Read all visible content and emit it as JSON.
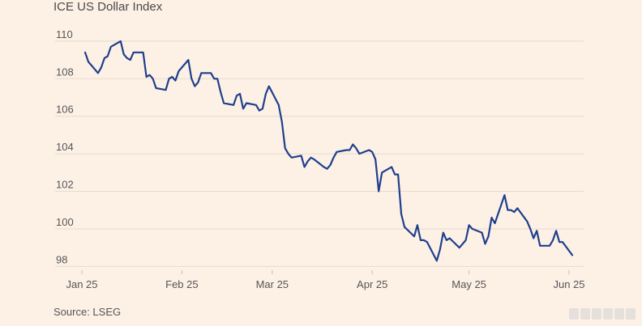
{
  "chart_data": {
    "type": "line",
    "title": "ICE US Dollar Index",
    "source": "Source: LSEG",
    "xlabel": "",
    "ylabel": "",
    "ylim": [
      97.8,
      110.9
    ],
    "y_ticks": [
      98,
      100,
      102,
      104,
      106,
      108,
      110
    ],
    "x_ticks": [
      {
        "label": "Jan 25",
        "date": "2025-01-01"
      },
      {
        "label": "Feb 25",
        "date": "2025-02-01"
      },
      {
        "label": "Mar 25",
        "date": "2025-03-01"
      },
      {
        "label": "Apr 25",
        "date": "2025-04-01"
      },
      {
        "label": "May 25",
        "date": "2025-05-01"
      },
      {
        "label": "Jun 25",
        "date": "2025-06-01"
      }
    ],
    "grid": true,
    "line_color": "#1f3f8c",
    "series": [
      {
        "x": [
          "2025-01-02",
          "2025-01-03",
          "2025-01-06",
          "2025-01-07",
          "2025-01-08",
          "2025-01-09",
          "2025-01-10",
          "2025-01-13",
          "2025-01-14",
          "2025-01-15",
          "2025-01-16",
          "2025-01-17",
          "2025-01-20",
          "2025-01-21",
          "2025-01-22",
          "2025-01-23",
          "2025-01-24",
          "2025-01-27",
          "2025-01-28",
          "2025-01-29",
          "2025-01-30",
          "2025-01-31",
          "2025-02-03",
          "2025-02-04",
          "2025-02-05",
          "2025-02-06",
          "2025-02-07",
          "2025-02-10",
          "2025-02-11",
          "2025-02-12",
          "2025-02-13",
          "2025-02-14",
          "2025-02-17",
          "2025-02-18",
          "2025-02-19",
          "2025-02-20",
          "2025-02-21",
          "2025-02-24",
          "2025-02-25",
          "2025-02-26",
          "2025-02-27",
          "2025-02-28",
          "2025-03-03",
          "2025-03-04",
          "2025-03-05",
          "2025-03-06",
          "2025-03-07",
          "2025-03-10",
          "2025-03-11",
          "2025-03-12",
          "2025-03-13",
          "2025-03-14",
          "2025-03-17",
          "2025-03-18",
          "2025-03-19",
          "2025-03-20",
          "2025-03-21",
          "2025-03-24",
          "2025-03-25",
          "2025-03-26",
          "2025-03-27",
          "2025-03-28",
          "2025-03-31",
          "2025-04-01",
          "2025-04-02",
          "2025-04-03",
          "2025-04-04",
          "2025-04-07",
          "2025-04-08",
          "2025-04-09",
          "2025-04-10",
          "2025-04-11",
          "2025-04-14",
          "2025-04-15",
          "2025-04-16",
          "2025-04-17",
          "2025-04-18",
          "2025-04-21",
          "2025-04-22",
          "2025-04-23",
          "2025-04-24",
          "2025-04-25",
          "2025-04-28",
          "2025-04-29",
          "2025-04-30",
          "2025-05-01",
          "2025-05-02",
          "2025-05-05",
          "2025-05-06",
          "2025-05-07",
          "2025-05-08",
          "2025-05-09",
          "2025-05-12",
          "2025-05-13",
          "2025-05-14",
          "2025-05-15",
          "2025-05-16",
          "2025-05-19",
          "2025-05-20",
          "2025-05-21",
          "2025-05-22",
          "2025-05-23",
          "2025-05-26",
          "2025-05-27",
          "2025-05-28",
          "2025-05-29",
          "2025-05-30",
          "2025-06-02"
        ],
        "values": [
          109.4,
          108.9,
          108.3,
          108.6,
          109.1,
          109.2,
          109.7,
          110.0,
          109.3,
          109.1,
          109.0,
          109.4,
          109.4,
          108.1,
          108.2,
          108.0,
          107.5,
          107.4,
          108.0,
          108.1,
          107.9,
          108.4,
          109.0,
          108.0,
          107.6,
          107.8,
          108.3,
          108.3,
          108.0,
          108.0,
          107.3,
          106.7,
          106.6,
          107.1,
          107.2,
          106.4,
          106.7,
          106.6,
          106.3,
          106.4,
          107.2,
          107.6,
          106.6,
          105.7,
          104.3,
          104.0,
          103.8,
          103.9,
          103.3,
          103.6,
          103.8,
          103.7,
          103.3,
          103.2,
          103.4,
          103.8,
          104.1,
          104.2,
          104.2,
          104.5,
          104.3,
          104.0,
          104.2,
          104.1,
          103.7,
          102.0,
          103.0,
          103.3,
          102.9,
          102.9,
          100.8,
          100.1,
          99.6,
          100.2,
          99.4,
          99.4,
          99.3,
          98.3,
          98.9,
          99.8,
          99.4,
          99.5,
          99.0,
          99.2,
          99.4,
          100.2,
          100.0,
          99.8,
          99.2,
          99.6,
          100.6,
          100.3,
          101.8,
          101.0,
          101.0,
          100.9,
          101.1,
          100.4,
          100.0,
          99.5,
          99.9,
          99.1,
          99.1,
          99.4,
          99.9,
          99.3,
          99.3,
          98.6
        ]
      }
    ]
  }
}
